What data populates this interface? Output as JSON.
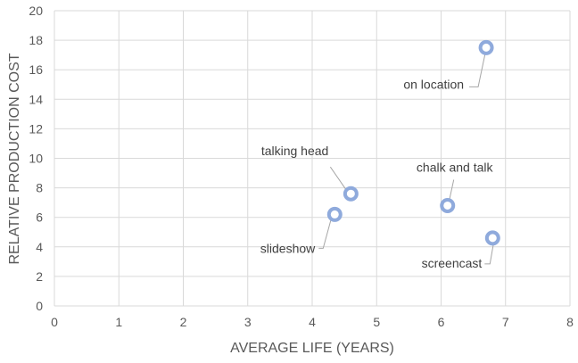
{
  "chart_data": {
    "type": "scatter",
    "title": "",
    "xlabel": "AVERAGE LIFE (YEARS)",
    "ylabel": "RELATIVE PRODUCTION COST",
    "xlim": [
      0,
      8
    ],
    "ylim": [
      0,
      20
    ],
    "xticks": [
      0,
      1,
      2,
      3,
      4,
      5,
      6,
      7,
      8
    ],
    "yticks": [
      0,
      2,
      4,
      6,
      8,
      10,
      12,
      14,
      16,
      18,
      20
    ],
    "grid": true,
    "legend": "none",
    "marker_color": "#8faadc",
    "points": [
      {
        "label": "on location",
        "x": 6.7,
        "y": 17.5
      },
      {
        "label": "talking head",
        "x": 4.6,
        "y": 7.6
      },
      {
        "label": "slideshow",
        "x": 4.35,
        "y": 6.2
      },
      {
        "label": "chalk and talk",
        "x": 6.1,
        "y": 6.8
      },
      {
        "label": "screencast",
        "x": 6.8,
        "y": 4.6
      }
    ]
  }
}
